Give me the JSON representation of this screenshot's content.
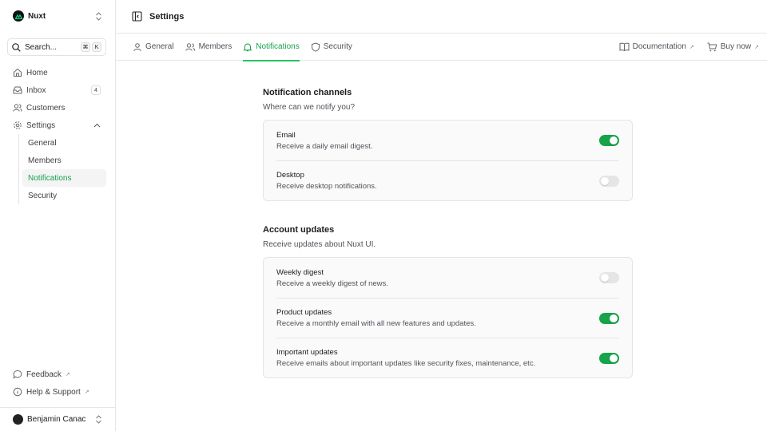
{
  "brand": {
    "name": "Nuxt"
  },
  "search": {
    "label": "Search...",
    "kbd": [
      "⌘",
      "K"
    ]
  },
  "nav": [
    {
      "label": "Home",
      "icon": "home-icon"
    },
    {
      "label": "Inbox",
      "icon": "inbox-icon",
      "badge": "4"
    },
    {
      "label": "Customers",
      "icon": "users-icon"
    },
    {
      "label": "Settings",
      "icon": "gear-icon"
    }
  ],
  "settings_sub": [
    {
      "label": "General"
    },
    {
      "label": "Members"
    },
    {
      "label": "Notifications",
      "active": true
    },
    {
      "label": "Security"
    }
  ],
  "bottom": [
    {
      "label": "Feedback"
    },
    {
      "label": "Help & Support"
    }
  ],
  "user": {
    "name": "Benjamin Canac"
  },
  "header": {
    "title": "Settings"
  },
  "tabs": [
    {
      "label": "General"
    },
    {
      "label": "Members"
    },
    {
      "label": "Notifications",
      "active": true
    },
    {
      "label": "Security"
    }
  ],
  "tab_links": [
    {
      "label": "Documentation"
    },
    {
      "label": "Buy now"
    }
  ],
  "ext_mark": "↗",
  "accent": "#16a34a",
  "sections": [
    {
      "title": "Notification channels",
      "subtitle": "Where can we notify you?",
      "items": [
        {
          "label": "Email",
          "description": "Receive a daily email digest.",
          "enabled": true
        },
        {
          "label": "Desktop",
          "description": "Receive desktop notifications.",
          "enabled": false
        }
      ]
    },
    {
      "title": "Account updates",
      "subtitle": "Receive updates about Nuxt UI.",
      "items": [
        {
          "label": "Weekly digest",
          "description": "Receive a weekly digest of news.",
          "enabled": false
        },
        {
          "label": "Product updates",
          "description": "Receive a monthly email with all new features and updates.",
          "enabled": true
        },
        {
          "label": "Important updates",
          "description": "Receive emails about important updates like security fixes, maintenance, etc.",
          "enabled": true
        }
      ]
    }
  ]
}
